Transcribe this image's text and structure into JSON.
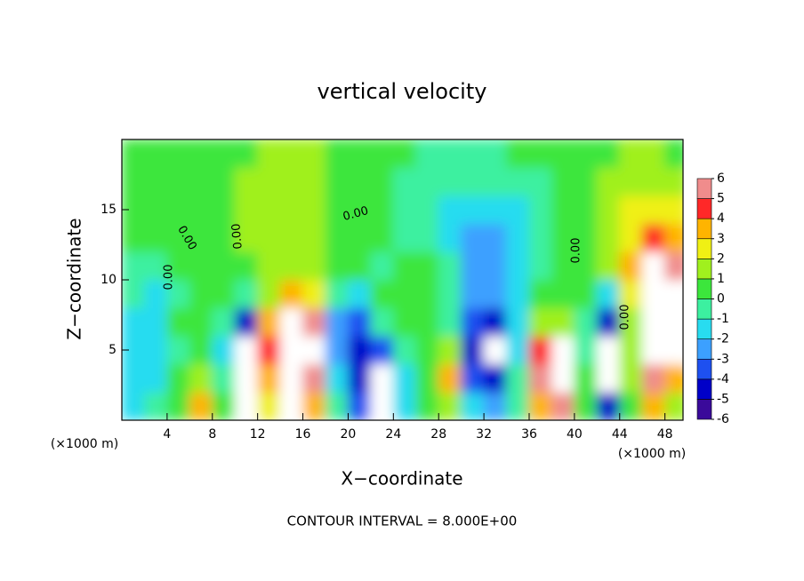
{
  "chart_data": {
    "type": "heatmap",
    "title": "vertical velocity",
    "x_label": "X−coordinate",
    "y_label": "Z−coordinate",
    "x_unit": "(×1000 m)",
    "footer": "CONTOUR INTERVAL = 8.000E+00",
    "x": [
      1,
      3,
      5,
      7,
      9,
      11,
      13,
      15,
      17,
      19,
      21,
      23,
      25,
      27,
      29,
      31,
      33,
      35,
      37,
      39,
      41,
      43,
      45,
      47,
      49
    ],
    "y": [
      1,
      3,
      5,
      7,
      9,
      11,
      13,
      15,
      17,
      19
    ],
    "values": [
      [
        -1.5,
        -0.5,
        0.5,
        3,
        0,
        -8,
        2,
        6,
        3,
        -1,
        -4,
        -7,
        -2,
        0,
        1,
        -2,
        -3,
        -0.5,
        3,
        5,
        0,
        -5,
        0.5,
        3,
        1
      ],
      [
        -1.5,
        -2,
        0,
        1,
        -1,
        -8,
        3,
        9,
        5,
        -2,
        -5,
        -8,
        -2,
        0.5,
        3,
        -4,
        -5,
        -1,
        5,
        8,
        0,
        -7,
        1,
        5,
        3
      ],
      [
        -2,
        -1.5,
        -0.5,
        0,
        -2,
        -8,
        4,
        10,
        6,
        -3,
        -5,
        -4,
        -1,
        0,
        1,
        -5,
        -8,
        -2,
        4,
        6,
        -1,
        -8,
        1,
        9,
        7
      ],
      [
        -1.5,
        -2,
        0,
        0,
        -1,
        -5,
        3,
        8,
        5,
        -3,
        -4,
        -1,
        0.5,
        0,
        -1,
        -4,
        -5,
        -2,
        1,
        1,
        -1,
        -5,
        1,
        10,
        8
      ],
      [
        -1,
        -1.5,
        -0.5,
        0,
        0,
        -1,
        1,
        3,
        2,
        -1,
        -1.5,
        0,
        0,
        0,
        -1,
        -3,
        -3,
        -1.5,
        0,
        0,
        0,
        -2,
        2,
        10,
        8
      ],
      [
        -1,
        -1,
        0,
        0.5,
        0.5,
        0.5,
        1,
        1,
        1,
        0.5,
        0,
        -0.5,
        0,
        0,
        -1,
        -3,
        -3,
        -2,
        -0.5,
        0,
        0.5,
        1,
        3,
        7,
        5
      ],
      [
        0,
        0,
        0.5,
        0.5,
        0.5,
        1,
        1,
        1,
        1,
        0.5,
        0,
        0,
        -0.5,
        -1,
        -1.5,
        -2.5,
        -3,
        -2,
        -1,
        0,
        0.5,
        1,
        2.5,
        4,
        3
      ],
      [
        0.5,
        0.5,
        0.5,
        0.5,
        0.5,
        1,
        1,
        1.2,
        1,
        0.5,
        0,
        0,
        -0.5,
        -1,
        -1.5,
        -2,
        -2,
        -1.5,
        -0.5,
        0,
        0.5,
        1,
        2,
        2.5,
        2
      ],
      [
        0.5,
        0.5,
        0.5,
        0.5,
        0.5,
        1,
        1.2,
        1.2,
        1,
        0.5,
        0,
        0,
        -0.5,
        -0.5,
        -1,
        -1,
        -1,
        -0.5,
        -0.5,
        0,
        0.5,
        1,
        1.5,
        1.5,
        1
      ],
      [
        0.5,
        0.5,
        0.5,
        0.5,
        0.5,
        0.5,
        1,
        1,
        1,
        0.5,
        0,
        0,
        0,
        -0.5,
        -0.5,
        -0.5,
        -0.5,
        0,
        0,
        0,
        0.5,
        0.5,
        1,
        1,
        0.5
      ]
    ],
    "xlim": [
      0,
      49.6
    ],
    "ylim": [
      0,
      20
    ],
    "xticks": [
      4,
      8,
      12,
      16,
      20,
      24,
      28,
      32,
      36,
      40,
      44,
      48
    ],
    "yticks": [
      5,
      10,
      15
    ],
    "colorbar": {
      "levels": [
        -6,
        -5,
        -4,
        -3,
        -2,
        -1,
        0,
        1,
        2,
        3,
        4,
        5,
        6
      ],
      "colors": [
        "#3a0a9a",
        "#0000c8",
        "#1e50f0",
        "#3ca0ff",
        "#28dcf0",
        "#3cf0a0",
        "#3ce63c",
        "#a0f01e",
        "#f0f014",
        "#ffb400",
        "#ff2828",
        "#f08c8c"
      ],
      "out_of_range_color": "#ffffff"
    },
    "contour_labels": [
      "0.00",
      "0.00",
      "0.00",
      "0.00",
      "0.00",
      "0.00"
    ]
  }
}
